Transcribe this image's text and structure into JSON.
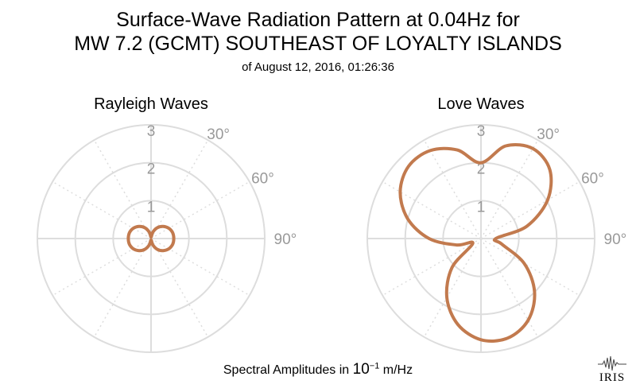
{
  "title_line1": "Surface-Wave Radiation Pattern at 0.04Hz for",
  "title_line2": "MW 7.2 (GCMT) SOUTHEAST OF LOYALTY ISLANDS",
  "subtitle": "of August 12, 2016, 01:26:36",
  "footer_prefix": "Spectral Amplitudes in",
  "footer_base": "10",
  "footer_exp": "−1",
  "footer_unit": "m/Hz",
  "logo_text": "IRIS",
  "colors": {
    "pattern": "#C27A4E",
    "grid": "#DDDDDD",
    "tick_label": "#999999"
  },
  "chart_data": [
    {
      "type": "polar",
      "title": "Rayleigh Waves",
      "radial_ticks": [
        1,
        2,
        3
      ],
      "angle_ticks": [
        "30°",
        "60°",
        "90°"
      ],
      "rlim": [
        0,
        3
      ],
      "series": [
        {
          "theta_deg": [
            0,
            15,
            30,
            45,
            60,
            75,
            90,
            105,
            120,
            135,
            150,
            165,
            180,
            195,
            210,
            225,
            240,
            255,
            270,
            285,
            300,
            315,
            330,
            345
          ],
          "r": [
            0.04,
            0.17,
            0.33,
            0.45,
            0.54,
            0.59,
            0.6,
            0.59,
            0.54,
            0.45,
            0.33,
            0.17,
            0.04,
            0.17,
            0.33,
            0.45,
            0.54,
            0.59,
            0.6,
            0.59,
            0.54,
            0.45,
            0.33,
            0.17
          ]
        }
      ]
    },
    {
      "type": "polar",
      "title": "Love Waves",
      "radial_ticks": [
        1,
        2,
        3
      ],
      "angle_ticks": [
        "30°",
        "60°",
        "90°"
      ],
      "rlim": [
        0,
        3
      ],
      "series": [
        {
          "theta_deg": [
            0,
            15,
            30,
            45,
            60,
            75,
            90,
            105,
            120,
            135,
            150,
            165,
            180,
            195,
            210,
            225,
            240,
            255,
            270,
            285,
            300,
            315,
            330,
            345
          ],
          "r": [
            2.0,
            2.53,
            2.74,
            2.57,
            2.03,
            1.25,
            0.39,
            0.57,
            1.32,
            2.0,
            2.49,
            2.72,
            2.67,
            2.35,
            1.8,
            1.08,
            0.25,
            0.66,
            1.37,
            2.0,
            2.46,
            2.7,
            2.68,
            2.42
          ]
        }
      ]
    }
  ]
}
